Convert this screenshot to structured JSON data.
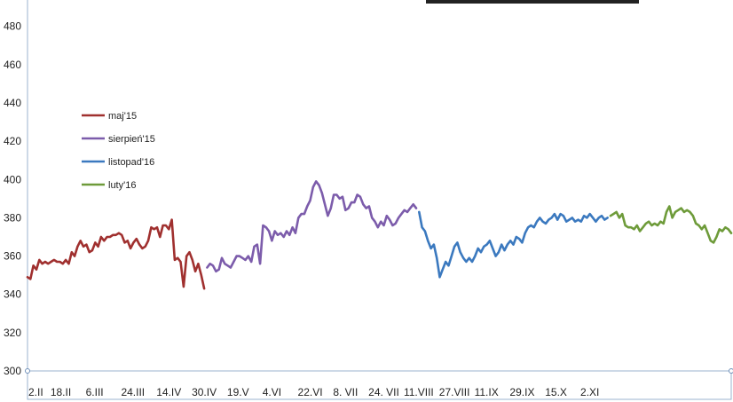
{
  "colors": {
    "series_1": "#a0302f",
    "series_2": "#7c5cab",
    "series_3": "#3b79bf",
    "series_4": "#6e9b3a",
    "axis": "#9bb3cf",
    "text": "#222222"
  },
  "chart_data": {
    "type": "line",
    "title": "",
    "xlabel": "",
    "ylabel": "",
    "ylim": [
      300,
      490
    ],
    "yticks": [
      300,
      320,
      340,
      360,
      380,
      400,
      420,
      440,
      460,
      480
    ],
    "grid": false,
    "legend_position": "left",
    "x_tick_labels": [
      "2.II",
      "18.II",
      "6.III",
      "24.III",
      "14.IV",
      "30.IV",
      "19.V",
      "4.VI",
      "22.VI",
      "8. VII",
      "24. VII",
      "11.VIII",
      "27.VIII",
      "11.IX",
      "29.IX",
      "15.X",
      "2.XI"
    ],
    "x_tick_index": [
      0,
      12,
      24,
      36,
      48,
      60,
      72,
      84,
      96,
      108,
      120,
      132,
      144,
      156,
      168,
      180,
      192
    ],
    "x_count": 240,
    "series": [
      {
        "name": "maj'15",
        "color_key": "series_1",
        "x": [
          0,
          1,
          2,
          3,
          4,
          5,
          6,
          7,
          8,
          9,
          10,
          11,
          12,
          13,
          14,
          15,
          16,
          17,
          18,
          19,
          20,
          21,
          22,
          23,
          24,
          25,
          26,
          27,
          28,
          29,
          30,
          31,
          32,
          33,
          34,
          35,
          36,
          37,
          38,
          39,
          40,
          41,
          42,
          43,
          44,
          45,
          46,
          47,
          48,
          49,
          50,
          51,
          52,
          53,
          54,
          55,
          56,
          57,
          58,
          59,
          60
        ],
        "y": [
          349,
          348,
          355,
          353,
          358,
          356,
          357,
          356,
          357,
          358,
          357,
          357,
          356,
          358,
          356,
          362,
          360,
          365,
          368,
          365,
          366,
          362,
          363,
          367,
          365,
          370,
          368,
          370,
          370,
          371,
          371,
          372,
          371,
          367,
          368,
          364,
          367,
          369,
          366,
          364,
          365,
          368,
          375,
          374,
          375,
          370,
          376,
          376,
          374,
          379,
          358,
          359,
          357,
          344,
          360,
          362,
          358,
          352,
          356,
          350,
          343
        ]
      },
      {
        "name": "sierpień'15",
        "color_key": "series_2",
        "x": [
          61,
          62,
          63,
          64,
          65,
          66,
          67,
          68,
          69,
          70,
          71,
          72,
          73,
          74,
          75,
          76,
          77,
          78,
          79,
          80,
          81,
          82,
          83,
          84,
          85,
          86,
          87,
          88,
          89,
          90,
          91,
          92,
          93,
          94,
          95,
          96,
          97,
          98,
          99,
          100,
          101,
          102,
          103,
          104,
          105,
          106,
          107,
          108,
          109,
          110,
          111,
          112,
          113,
          114,
          115,
          116,
          117,
          118,
          119,
          120,
          121,
          122,
          123,
          124,
          125,
          126,
          127,
          128,
          129,
          130,
          131,
          132
        ],
        "y": [
          354,
          356,
          355,
          352,
          353,
          359,
          356,
          355,
          354,
          357,
          360,
          360,
          359,
          358,
          360,
          357,
          365,
          366,
          356,
          376,
          375,
          373,
          368,
          373,
          371,
          372,
          370,
          373,
          371,
          375,
          372,
          380,
          382,
          382,
          386,
          389,
          396,
          399,
          397,
          393,
          387,
          381,
          385,
          392,
          392,
          390,
          391,
          384,
          385,
          388,
          388,
          392,
          391,
          387,
          385,
          386,
          380,
          378,
          375,
          378,
          376,
          381,
          379,
          376,
          377,
          380,
          382,
          384,
          383,
          385,
          387,
          385
        ]
      },
      {
        "name": "listopad'16",
        "color_key": "series_3",
        "x": [
          133,
          134,
          135,
          136,
          137,
          138,
          139,
          140,
          141,
          142,
          143,
          144,
          145,
          146,
          147,
          148,
          149,
          150,
          151,
          152,
          153,
          154,
          155,
          156,
          157,
          158,
          159,
          160,
          161,
          162,
          163,
          164,
          165,
          166,
          167,
          168,
          169,
          170,
          171,
          172,
          173,
          174,
          175,
          176,
          177,
          178,
          179,
          180,
          181,
          182,
          183,
          184,
          185,
          186,
          187,
          188,
          189,
          190,
          191,
          192,
          193,
          194,
          195,
          196,
          197
        ],
        "y": [
          383,
          375,
          373,
          368,
          364,
          366,
          359,
          349,
          353,
          357,
          355,
          360,
          365,
          367,
          362,
          359,
          357,
          359,
          357,
          360,
          364,
          362,
          365,
          366,
          368,
          364,
          360,
          362,
          366,
          363,
          366,
          368,
          366,
          370,
          369,
          367,
          372,
          375,
          376,
          375,
          378,
          380,
          378,
          377,
          379,
          380,
          382,
          379,
          382,
          381,
          378,
          379,
          380,
          378,
          379,
          378,
          381,
          380,
          382,
          380,
          378,
          380,
          381,
          379,
          380
        ]
      },
      {
        "name": "luty'16",
        "color_key": "series_4",
        "x": [
          198,
          199,
          200,
          201,
          202,
          203,
          204,
          205,
          206,
          207,
          208,
          209,
          210,
          211,
          212,
          213,
          214,
          215,
          216,
          217,
          218,
          219,
          220,
          221,
          222,
          223,
          224,
          225,
          226,
          227,
          228,
          229,
          230,
          231,
          232,
          233,
          234,
          235,
          236,
          237,
          238,
          239
        ],
        "y": [
          381,
          382,
          383,
          380,
          382,
          376,
          375,
          375,
          374,
          376,
          373,
          375,
          377,
          378,
          376,
          377,
          376,
          378,
          377,
          383,
          386,
          380,
          383,
          384,
          385,
          383,
          384,
          383,
          381,
          377,
          376,
          374,
          376,
          372,
          368,
          367,
          370,
          374,
          373,
          375,
          374,
          372
        ]
      }
    ]
  }
}
